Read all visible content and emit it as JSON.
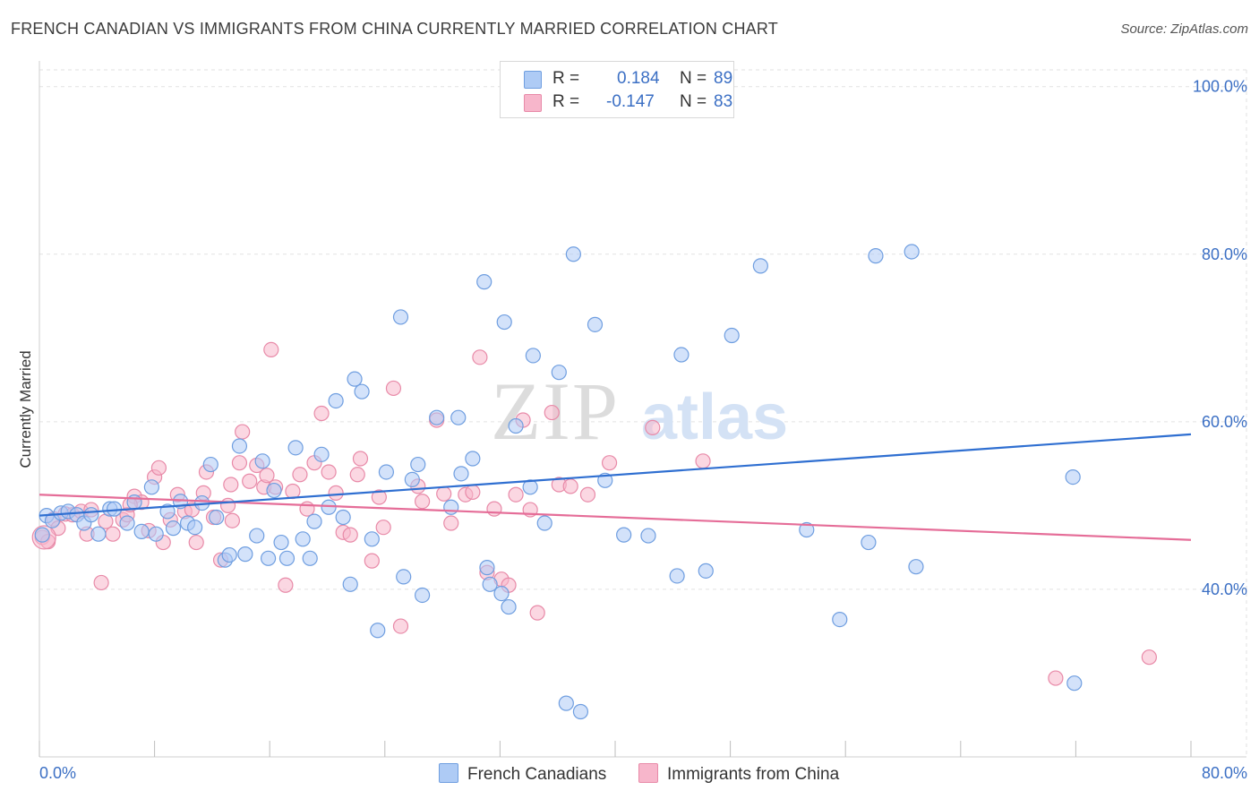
{
  "title": "FRENCH CANADIAN VS IMMIGRANTS FROM CHINA CURRENTLY MARRIED CORRELATION CHART",
  "source": "Source: ZipAtlas.com",
  "watermark": {
    "zip": "ZIP",
    "atlas": "atlas"
  },
  "legend": {
    "r_label": "R =",
    "n_label": "N =",
    "rows": [
      {
        "r": "0.184",
        "n": "89",
        "color": "#aecbf5"
      },
      {
        "r": "-0.147",
        "n": "83",
        "color": "#f7b6cb"
      }
    ]
  },
  "colors": {
    "blue_fill": "#aecbf5",
    "blue_stroke": "#6f9ee0",
    "blue_line": "#2f6fd1",
    "pink_fill": "#f7b6cb",
    "pink_stroke": "#e88aa8",
    "pink_line": "#e56d98",
    "tick_label": "#3b6fc4",
    "grid": "#e2e2e2"
  },
  "chart_data": {
    "type": "scatter",
    "title": "FRENCH CANADIAN VS IMMIGRANTS FROM CHINA CURRENTLY MARRIED CORRELATION CHART",
    "xlabel": "",
    "ylabel": "Currently Married",
    "xlim": [
      0,
      80
    ],
    "ylim": [
      20,
      102
    ],
    "x_tick_labels": [
      "0.0%",
      "80.0%"
    ],
    "y_ticks": [
      40,
      60,
      80,
      100
    ],
    "y_tick_labels": [
      "40.0%",
      "60.0%",
      "80.0%",
      "100.0%"
    ],
    "grid": true,
    "legend_position": "top-center",
    "series": [
      {
        "name": "French Canadians",
        "r": 0.184,
        "n": 89,
        "trend": {
          "x": [
            0,
            80
          ],
          "y": [
            48.8,
            58.5
          ]
        },
        "points": [
          [
            0.2,
            46.5
          ],
          [
            0.5,
            48.8
          ],
          [
            0.9,
            48.2
          ],
          [
            1.5,
            49.1
          ],
          [
            2.0,
            49.3
          ],
          [
            2.6,
            48.9
          ],
          [
            3.1,
            47.9
          ],
          [
            3.6,
            48.9
          ],
          [
            4.1,
            46.6
          ],
          [
            4.9,
            49.6
          ],
          [
            5.2,
            49.6
          ],
          [
            6.1,
            47.9
          ],
          [
            6.6,
            50.4
          ],
          [
            7.1,
            46.9
          ],
          [
            7.8,
            52.2
          ],
          [
            8.1,
            46.6
          ],
          [
            8.9,
            49.3
          ],
          [
            9.3,
            47.3
          ],
          [
            9.8,
            50.5
          ],
          [
            10.3,
            47.9
          ],
          [
            10.8,
            47.4
          ],
          [
            11.3,
            50.3
          ],
          [
            11.9,
            54.9
          ],
          [
            12.3,
            48.6
          ],
          [
            12.9,
            43.5
          ],
          [
            13.2,
            44.1
          ],
          [
            13.9,
            57.1
          ],
          [
            14.3,
            44.2
          ],
          [
            15.1,
            46.4
          ],
          [
            15.5,
            55.3
          ],
          [
            15.9,
            43.7
          ],
          [
            16.3,
            51.8
          ],
          [
            16.8,
            45.6
          ],
          [
            17.2,
            43.7
          ],
          [
            17.8,
            56.9
          ],
          [
            18.3,
            46.0
          ],
          [
            18.8,
            43.7
          ],
          [
            19.1,
            48.1
          ],
          [
            19.6,
            56.1
          ],
          [
            20.1,
            49.8
          ],
          [
            20.6,
            62.5
          ],
          [
            21.1,
            48.6
          ],
          [
            21.6,
            40.6
          ],
          [
            21.9,
            65.1
          ],
          [
            22.4,
            63.6
          ],
          [
            23.1,
            46.0
          ],
          [
            23.5,
            35.1
          ],
          [
            24.1,
            54.0
          ],
          [
            25.1,
            72.5
          ],
          [
            25.3,
            41.5
          ],
          [
            25.9,
            53.1
          ],
          [
            26.3,
            54.9
          ],
          [
            26.6,
            39.3
          ],
          [
            27.6,
            60.5
          ],
          [
            28.6,
            49.8
          ],
          [
            29.1,
            60.5
          ],
          [
            29.3,
            53.8
          ],
          [
            30.1,
            55.6
          ],
          [
            30.9,
            76.7
          ],
          [
            31.1,
            42.6
          ],
          [
            31.3,
            40.6
          ],
          [
            32.1,
            39.5
          ],
          [
            32.3,
            71.9
          ],
          [
            32.6,
            37.9
          ],
          [
            33.1,
            59.5
          ],
          [
            34.1,
            52.2
          ],
          [
            34.3,
            67.9
          ],
          [
            35.1,
            47.9
          ],
          [
            36.1,
            65.9
          ],
          [
            36.6,
            26.4
          ],
          [
            37.1,
            80.0
          ],
          [
            37.6,
            25.4
          ],
          [
            38.6,
            71.6
          ],
          [
            39.3,
            53.0
          ],
          [
            40.6,
            46.5
          ],
          [
            42.3,
            46.4
          ],
          [
            44.3,
            41.6
          ],
          [
            44.6,
            68.0
          ],
          [
            46.3,
            42.2
          ],
          [
            48.1,
            70.3
          ],
          [
            50.1,
            78.6
          ],
          [
            53.3,
            47.1
          ],
          [
            55.6,
            36.4
          ],
          [
            57.6,
            45.6
          ],
          [
            58.1,
            79.8
          ],
          [
            60.6,
            80.3
          ],
          [
            60.9,
            42.7
          ],
          [
            71.8,
            53.4
          ],
          [
            71.9,
            28.8
          ]
        ]
      },
      {
        "name": "Immigrants from China",
        "r": -0.147,
        "n": 83,
        "trend": {
          "x": [
            0,
            80
          ],
          "y": [
            51.3,
            45.9
          ]
        },
        "points": [
          [
            0.2,
            46.2
          ],
          [
            0.6,
            45.7
          ],
          [
            1.0,
            48.4
          ],
          [
            1.3,
            47.3
          ],
          [
            1.8,
            49.0
          ],
          [
            2.3,
            48.9
          ],
          [
            2.9,
            49.3
          ],
          [
            3.3,
            46.6
          ],
          [
            3.6,
            49.5
          ],
          [
            4.3,
            40.8
          ],
          [
            4.6,
            48.1
          ],
          [
            5.1,
            46.6
          ],
          [
            5.8,
            48.3
          ],
          [
            6.1,
            48.9
          ],
          [
            6.6,
            51.1
          ],
          [
            7.1,
            50.4
          ],
          [
            7.6,
            47.0
          ],
          [
            8.0,
            53.4
          ],
          [
            8.3,
            54.5
          ],
          [
            8.6,
            45.6
          ],
          [
            9.1,
            48.3
          ],
          [
            9.6,
            51.3
          ],
          [
            10.1,
            49.3
          ],
          [
            10.6,
            49.5
          ],
          [
            10.9,
            45.6
          ],
          [
            11.4,
            51.5
          ],
          [
            11.6,
            54.0
          ],
          [
            12.1,
            48.6
          ],
          [
            12.6,
            43.5
          ],
          [
            13.1,
            50.0
          ],
          [
            13.4,
            48.2
          ],
          [
            13.9,
            55.1
          ],
          [
            14.1,
            58.8
          ],
          [
            14.6,
            52.9
          ],
          [
            15.1,
            54.8
          ],
          [
            15.6,
            52.2
          ],
          [
            15.8,
            53.6
          ],
          [
            16.1,
            68.6
          ],
          [
            16.4,
            52.2
          ],
          [
            17.1,
            40.5
          ],
          [
            17.6,
            51.7
          ],
          [
            18.1,
            53.7
          ],
          [
            18.6,
            49.6
          ],
          [
            19.1,
            55.1
          ],
          [
            19.6,
            61.0
          ],
          [
            20.1,
            54.0
          ],
          [
            20.6,
            51.5
          ],
          [
            21.1,
            46.8
          ],
          [
            21.6,
            46.5
          ],
          [
            22.1,
            53.7
          ],
          [
            22.3,
            55.6
          ],
          [
            23.1,
            43.4
          ],
          [
            23.6,
            51.0
          ],
          [
            23.9,
            47.4
          ],
          [
            24.6,
            64.0
          ],
          [
            25.1,
            35.6
          ],
          [
            26.3,
            52.3
          ],
          [
            26.6,
            50.5
          ],
          [
            27.6,
            60.2
          ],
          [
            28.1,
            51.4
          ],
          [
            28.6,
            47.9
          ],
          [
            29.6,
            51.3
          ],
          [
            30.1,
            51.6
          ],
          [
            30.6,
            67.7
          ],
          [
            31.1,
            42.0
          ],
          [
            31.6,
            49.6
          ],
          [
            32.1,
            41.2
          ],
          [
            32.6,
            40.5
          ],
          [
            33.1,
            51.3
          ],
          [
            33.6,
            60.2
          ],
          [
            34.1,
            49.5
          ],
          [
            34.6,
            37.2
          ],
          [
            35.6,
            61.1
          ],
          [
            36.1,
            52.5
          ],
          [
            36.9,
            52.3
          ],
          [
            38.1,
            51.3
          ],
          [
            39.6,
            55.1
          ],
          [
            42.6,
            59.3
          ],
          [
            46.1,
            55.3
          ],
          [
            70.6,
            29.4
          ],
          [
            77.1,
            31.9
          ],
          [
            13.3,
            52.5
          ],
          [
            6.3,
            50.1
          ]
        ]
      }
    ]
  },
  "bottom_legend": [
    {
      "label": "French Canadians"
    },
    {
      "label": "Immigrants from China"
    }
  ]
}
